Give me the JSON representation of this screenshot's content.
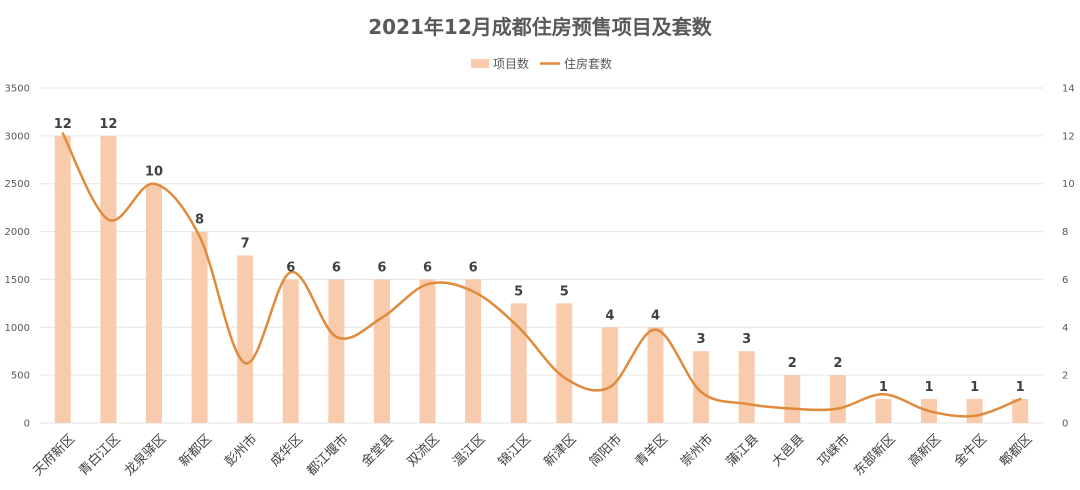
{
  "chart_data": {
    "type": "bar",
    "title": "2021年12月成都住房预售项目及套数",
    "categories": [
      "天府新区",
      "青白江区",
      "龙泉驿区",
      "新都区",
      "彭州市",
      "成华区",
      "都江堰市",
      "金堂县",
      "双流区",
      "温江区",
      "锦江区",
      "新津区",
      "简阳市",
      "青羊区",
      "崇州市",
      "蒲江县",
      "大邑县",
      "邛崃市",
      "东部新区",
      "高新区",
      "金牛区",
      "郫都区"
    ],
    "series": [
      {
        "name": "项目数",
        "type": "bar",
        "axis": "left",
        "color": "#f8cbad",
        "values": [
          3000,
          3000,
          2500,
          2000,
          1750,
          1500,
          1500,
          1500,
          1500,
          1500,
          1250,
          1250,
          1000,
          1000,
          750,
          750,
          500,
          500,
          250,
          250,
          250,
          250
        ],
        "labels": [
          "12",
          "12",
          "10",
          "8",
          "7",
          "6",
          "6",
          "6",
          "6",
          "6",
          "5",
          "5",
          "4",
          "4",
          "3",
          "3",
          "2",
          "2",
          "1",
          "1",
          "1",
          "1"
        ]
      },
      {
        "name": "住房套数",
        "type": "line",
        "axis": "right",
        "color": "#e08a3c",
        "values": [
          12.1,
          8.5,
          10.0,
          7.8,
          2.5,
          6.3,
          3.6,
          4.4,
          5.8,
          5.5,
          4.0,
          1.9,
          1.5,
          3.9,
          1.3,
          0.8,
          0.6,
          0.6,
          1.2,
          0.5,
          0.3,
          1.0
        ]
      }
    ],
    "y_left": {
      "min": 0,
      "max": 3500,
      "ticks": [
        "0",
        "500",
        "1000",
        "1500",
        "2000",
        "2500",
        "3000",
        "3500"
      ]
    },
    "y_right": {
      "min": 0,
      "max": 14,
      "ticks": [
        "0",
        "2",
        "4",
        "6",
        "8",
        "10",
        "12",
        "14"
      ]
    },
    "legend_position": "top-center",
    "grid": true
  }
}
